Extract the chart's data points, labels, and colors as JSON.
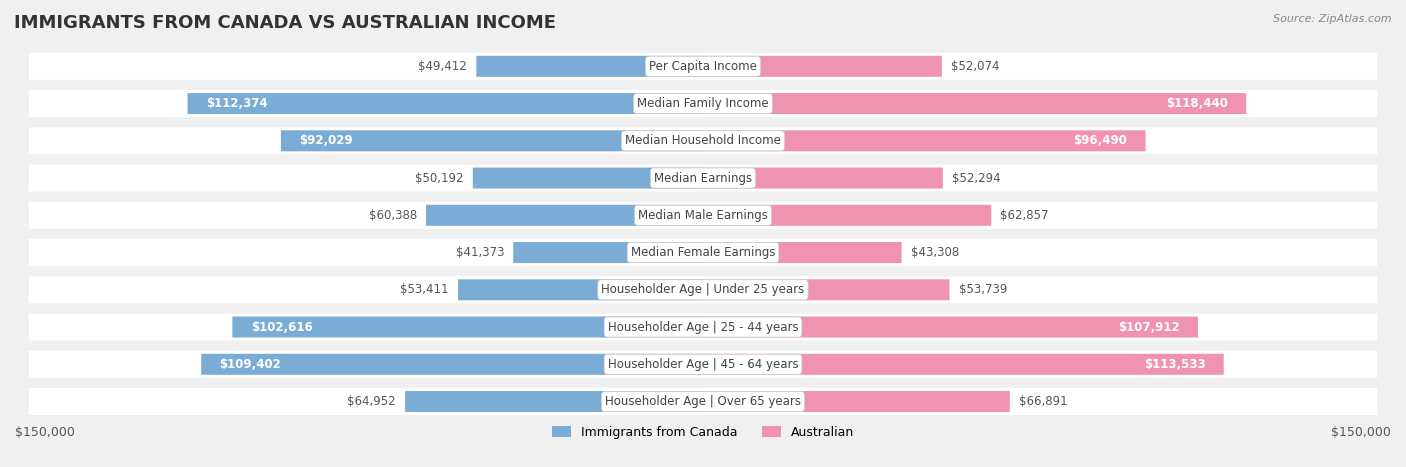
{
  "title": "IMMIGRANTS FROM CANADA VS AUSTRALIAN INCOME",
  "source": "Source: ZipAtlas.com",
  "categories": [
    "Per Capita Income",
    "Median Family Income",
    "Median Household Income",
    "Median Earnings",
    "Median Male Earnings",
    "Median Female Earnings",
    "Householder Age | Under 25 years",
    "Householder Age | 25 - 44 years",
    "Householder Age | 45 - 64 years",
    "Householder Age | Over 65 years"
  ],
  "canada_values": [
    49412,
    112374,
    92029,
    50192,
    60388,
    41373,
    53411,
    102616,
    109402,
    64952
  ],
  "australia_values": [
    52074,
    118440,
    96490,
    52294,
    62857,
    43308,
    53739,
    107912,
    113533,
    66891
  ],
  "canada_color": "#7aacd6",
  "australia_color": "#f093b0",
  "canada_label": "Immigrants from Canada",
  "australia_label": "Australian",
  "max_value": 150000,
  "background_color": "#f0f0f0",
  "row_bg_color": "#ffffff",
  "label_box_color": "#ffffff",
  "label_fontsize": 8.5,
  "value_fontsize": 8.5,
  "title_fontsize": 13,
  "canada_text_threshold": 80000,
  "australia_text_threshold": 80000
}
